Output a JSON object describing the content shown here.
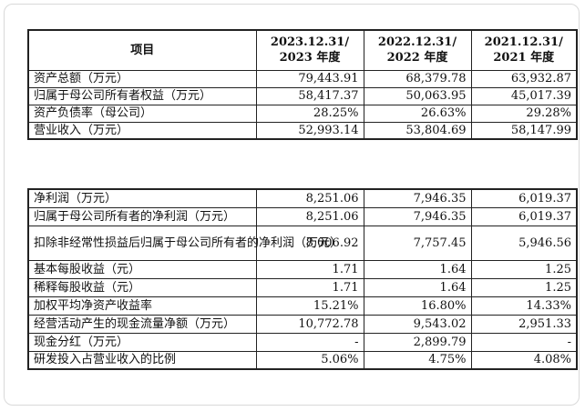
{
  "table1": {
    "header": {
      "item": "项目",
      "col1": [
        "2023.12.31/",
        "2023 年度"
      ],
      "col2": [
        "2022.12.31/",
        "2022 年度"
      ],
      "col3": [
        "2021.12.31/",
        "2021 年度"
      ]
    },
    "rows": [
      {
        "label": "资产总额（万元）",
        "v1": "79,443.91",
        "v2": "68,379.78",
        "v3": "63,932.87"
      },
      {
        "label": "归属于母公司所有者权益（万元）",
        "v1": "58,417.37",
        "v2": "50,063.95",
        "v3": "45,017.39"
      },
      {
        "label": "资产负债率（母公司）",
        "v1": "28.25%",
        "v2": "26.63%",
        "v3": "29.28%"
      },
      {
        "label": "营业收入（万元）",
        "v1": "52,993.14",
        "v2": "53,804.69",
        "v3": "58,147.99"
      }
    ]
  },
  "table2": {
    "rows": [
      {
        "label": "净利润（万元）",
        "v1": "8,251.06",
        "v2": "7,946.35",
        "v3": "6,019.37"
      },
      {
        "label": "归属于母公司所有者的净利润（万元）",
        "v1": "8,251.06",
        "v2": "7,946.35",
        "v3": "6,019.37"
      },
      {
        "label": "扣除非经常性损益后归属于母公司所有者的净利润（万元）",
        "v1": "8,006.92",
        "v2": "7,757.45",
        "v3": "5,946.56"
      },
      {
        "label": "基本每股收益（元）",
        "v1": "1.71",
        "v2": "1.64",
        "v3": "1.25"
      },
      {
        "label": "稀释每股收益（元）",
        "v1": "1.71",
        "v2": "1.64",
        "v3": "1.25"
      },
      {
        "label": "加权平均净资产收益率",
        "v1": "15.21%",
        "v2": "16.80%",
        "v3": "14.33%"
      },
      {
        "label": "经营活动产生的现金流量净额（万元）",
        "v1": "10,772.78",
        "v2": "9,543.02",
        "v3": "2,951.33"
      },
      {
        "label": "现金分红（万元）",
        "v1": "-",
        "v2": "2,899.79",
        "v3": "-"
      },
      {
        "label": "研发投入占营业收入的比例",
        "v1": "5.06%",
        "v2": "4.75%",
        "v3": "4.08%"
      }
    ]
  }
}
